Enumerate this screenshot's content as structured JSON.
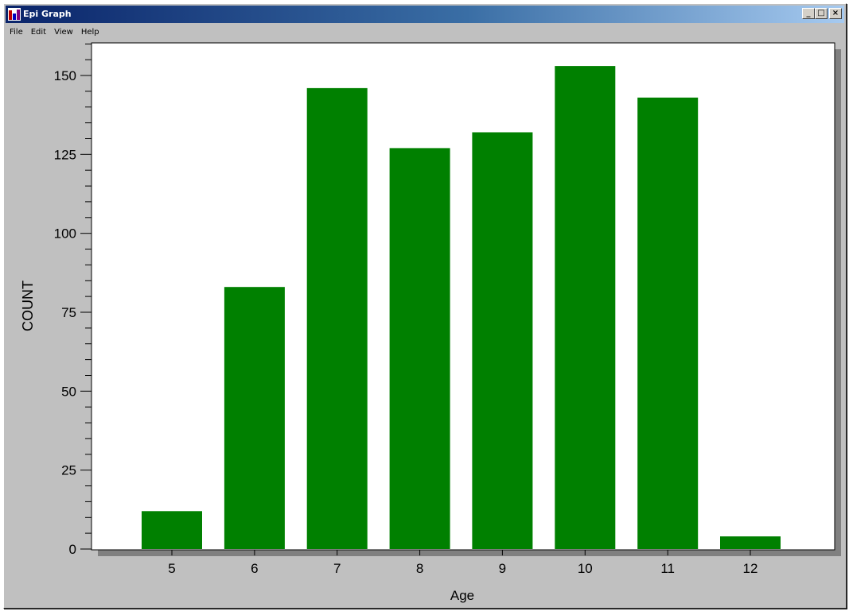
{
  "window": {
    "title": "Epi Graph",
    "minimize_icon": "minimize-icon",
    "maximize_icon": "maximize-icon",
    "close_icon": "close-icon"
  },
  "menu": {
    "items": [
      "File",
      "Edit",
      "View",
      "Help"
    ]
  },
  "colors": {
    "bar": "#008000",
    "plot_background": "#ffffff",
    "shadow": "#808080",
    "window_background": "#c0c0c0"
  },
  "chart_data": {
    "type": "bar",
    "categories": [
      "5",
      "6",
      "7",
      "8",
      "9",
      "10",
      "11",
      "12"
    ],
    "values": [
      12,
      83,
      146,
      127,
      132,
      153,
      143,
      4
    ],
    "title": "",
    "xlabel": "Age",
    "ylabel": "COUNT",
    "ylim": [
      0,
      160
    ],
    "yticks": [
      0,
      25,
      50,
      75,
      100,
      125,
      150
    ],
    "grid": false,
    "legend": "none"
  }
}
